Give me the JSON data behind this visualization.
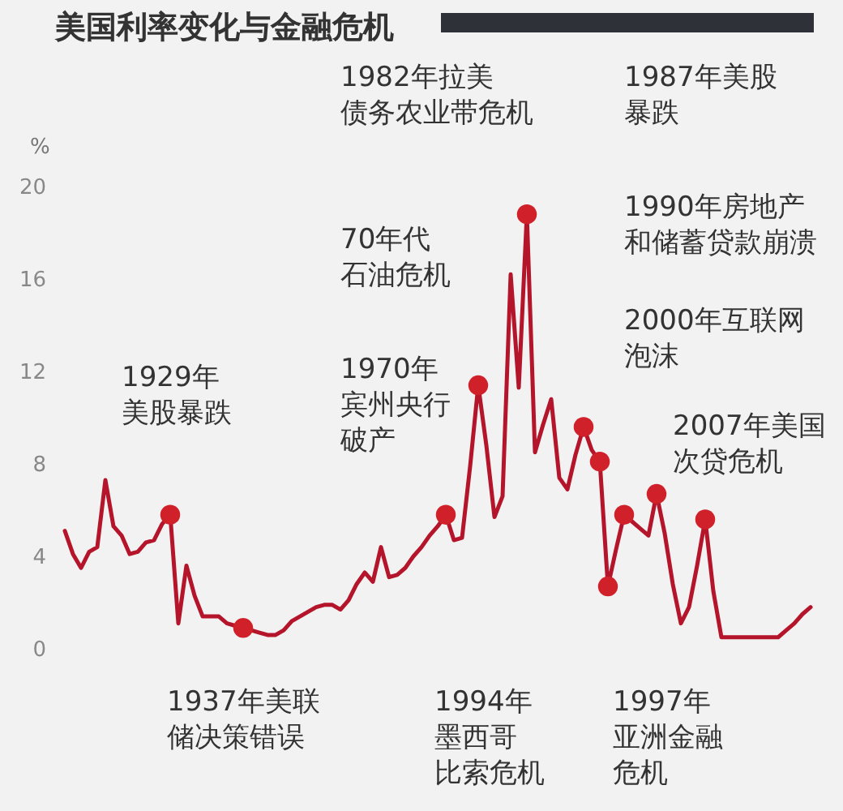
{
  "chart_data": {
    "type": "line",
    "title": "美国利率变化与金融危机",
    "ylabel": "%",
    "categories": [
      null,
      null,
      null,
      null,
      null,
      null,
      null,
      null,
      null,
      null,
      null,
      null,
      null,
      null,
      null,
      null,
      null,
      null,
      null,
      null,
      null,
      null,
      null,
      null,
      null,
      null,
      null,
      null,
      null,
      null,
      null,
      null,
      null,
      null,
      null,
      null,
      null,
      null,
      null,
      null,
      null,
      null,
      null,
      null,
      null,
      null,
      null,
      null,
      null,
      null,
      null,
      null,
      null,
      null,
      null,
      null,
      null,
      null,
      null,
      null,
      null,
      null,
      null,
      null,
      null,
      null,
      null,
      null,
      null,
      null,
      null,
      null,
      null,
      null,
      null,
      null,
      null,
      null,
      null,
      null,
      null,
      null,
      null,
      null,
      null,
      null,
      null,
      null,
      null,
      null,
      null,
      null,
      null
    ],
    "series": [
      {
        "color": "#b5152b",
        "values": [
          5.1,
          4.1,
          3.5,
          4.2,
          4.4,
          7.3,
          5.3,
          4.9,
          4.1,
          4.2,
          4.6,
          4.7,
          5.4,
          5.8,
          1.1,
          3.6,
          2.3,
          1.4,
          1.4,
          1.4,
          1.1,
          1.0,
          0.9,
          0.8,
          0.7,
          0.6,
          0.6,
          0.8,
          1.2,
          1.4,
          1.6,
          1.8,
          1.9,
          1.9,
          1.7,
          2.1,
          2.8,
          3.3,
          2.9,
          4.4,
          3.1,
          3.2,
          3.5,
          4.0,
          4.4,
          4.9,
          5.3,
          5.8,
          4.7,
          4.8,
          7.9,
          11.4,
          8.8,
          5.7,
          6.6,
          16.2,
          11.3,
          18.8,
          8.5,
          9.7,
          10.8,
          7.4,
          6.9,
          8.4,
          9.6,
          8.6,
          8.1,
          2.7,
          4.3,
          5.8,
          5.5,
          5.2,
          4.9,
          6.7,
          5.0,
          2.8,
          1.1,
          1.8,
          3.6,
          5.6,
          2.5,
          0.5,
          0.5,
          0.5,
          0.5,
          0.5,
          0.5,
          0.5,
          0.5,
          0.8,
          1.1,
          1.5,
          1.8
        ]
      },
      {
        "type": "scatter",
        "color": "#d0202a",
        "values": [
          null,
          null,
          null,
          null,
          null,
          null,
          null,
          null,
          null,
          null,
          null,
          null,
          null,
          5.8,
          null,
          null,
          null,
          null,
          null,
          null,
          null,
          null,
          0.9,
          null,
          null,
          null,
          null,
          null,
          null,
          null,
          null,
          null,
          null,
          null,
          null,
          null,
          null,
          null,
          null,
          null,
          null,
          null,
          null,
          null,
          null,
          null,
          null,
          5.8,
          null,
          null,
          null,
          11.4,
          null,
          null,
          null,
          null,
          null,
          18.8,
          null,
          null,
          null,
          null,
          null,
          null,
          9.6,
          null,
          8.1,
          2.7,
          null,
          5.8,
          null,
          null,
          null,
          6.7,
          null,
          null,
          null,
          null,
          null,
          5.6,
          null,
          null,
          null,
          null,
          null,
          null,
          null,
          null,
          null,
          null,
          null,
          null,
          null
        ]
      }
    ],
    "ylim": [
      0,
      20
    ],
    "yticks": [
      0,
      4,
      8,
      12,
      16,
      20
    ],
    "tick_labels": "y",
    "annotations": [
      "1929年美股暴跌",
      "1937年美联储决策错误",
      "70年代石油危机",
      "1970年宾州央行破产",
      "1982年拉美债务农业带危机",
      "1994年墨西哥比索危机",
      "1987年美股暴跌",
      "1990年房地产和储蓄贷款崩溃",
      "2000年互联网泡沫",
      "2007年美国次贷危机",
      "1997年亚洲金融危机"
    ]
  }
}
